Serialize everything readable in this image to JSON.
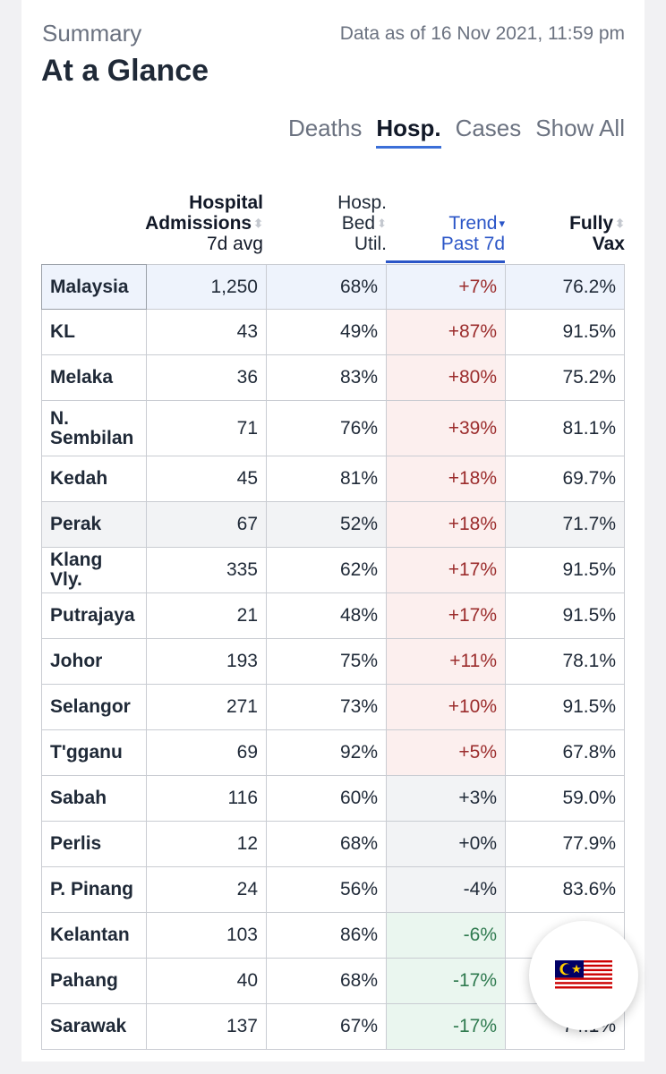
{
  "header": {
    "summary_label": "Summary",
    "data_as_of": "Data as of 16 Nov 2021, 11:59 pm",
    "title": "At a Glance"
  },
  "tabs": [
    {
      "label": "Deaths",
      "active": false
    },
    {
      "label": "Hosp.",
      "active": true
    },
    {
      "label": "Cases",
      "active": false
    },
    {
      "label": "Show All",
      "active": false
    }
  ],
  "columns": {
    "admissions": {
      "line1": "Hospital",
      "line2": "Admissions",
      "line3": "7d avg"
    },
    "bed_util": {
      "line1": "Hosp.",
      "line2": "Bed",
      "line3": "Util."
    },
    "trend": {
      "line1": "Trend",
      "line2": "Past 7d"
    },
    "vax": {
      "line1": "Fully",
      "line2": "Vax"
    }
  },
  "rows": [
    {
      "state": "Malaysia",
      "admissions": "1,250",
      "bed_util": "68%",
      "trend": "+7%",
      "vax": "76.2%"
    },
    {
      "state": "KL",
      "admissions": "43",
      "bed_util": "49%",
      "trend": "+87%",
      "vax": "91.5%"
    },
    {
      "state": "Melaka",
      "admissions": "36",
      "bed_util": "83%",
      "trend": "+80%",
      "vax": "75.2%"
    },
    {
      "state": "N. Sembilan",
      "admissions": "71",
      "bed_util": "76%",
      "trend": "+39%",
      "vax": "81.1%"
    },
    {
      "state": "Kedah",
      "admissions": "45",
      "bed_util": "81%",
      "trend": "+18%",
      "vax": "69.7%"
    },
    {
      "state": "Perak",
      "admissions": "67",
      "bed_util": "52%",
      "trend": "+18%",
      "vax": "71.7%"
    },
    {
      "state": "Klang Vly.",
      "admissions": "335",
      "bed_util": "62%",
      "trend": "+17%",
      "vax": "91.5%"
    },
    {
      "state": "Putrajaya",
      "admissions": "21",
      "bed_util": "48%",
      "trend": "+17%",
      "vax": "91.5%"
    },
    {
      "state": "Johor",
      "admissions": "193",
      "bed_util": "75%",
      "trend": "+11%",
      "vax": "78.1%"
    },
    {
      "state": "Selangor",
      "admissions": "271",
      "bed_util": "73%",
      "trend": "+10%",
      "vax": "91.5%"
    },
    {
      "state": "T'gganu",
      "admissions": "69",
      "bed_util": "92%",
      "trend": "+5%",
      "vax": "67.8%"
    },
    {
      "state": "Sabah",
      "admissions": "116",
      "bed_util": "60%",
      "trend": "+3%",
      "vax": "59.0%"
    },
    {
      "state": "Perlis",
      "admissions": "12",
      "bed_util": "68%",
      "trend": "+0%",
      "vax": "77.9%"
    },
    {
      "state": "P. Pinang",
      "admissions": "24",
      "bed_util": "56%",
      "trend": "-4%",
      "vax": "83.6%"
    },
    {
      "state": "Kelantan",
      "admissions": "103",
      "bed_util": "86%",
      "trend": "-6%",
      "vax": ""
    },
    {
      "state": "Pahang",
      "admissions": "40",
      "bed_util": "68%",
      "trend": "-17%",
      "vax": ""
    },
    {
      "state": "Sarawak",
      "admissions": "137",
      "bed_util": "67%",
      "trend": "-17%",
      "vax": "74.1%"
    }
  ],
  "fab": {
    "icon": "malaysia-flag-icon"
  },
  "colors": {
    "accent": "#2a55c7",
    "trend_up_bg": "#fcefee",
    "trend_up_text": "#9b2c2c",
    "trend_down_bg": "#eaf6ef",
    "trend_down_text": "#2f7a4f",
    "national_row_bg": "#eef3fc"
  }
}
